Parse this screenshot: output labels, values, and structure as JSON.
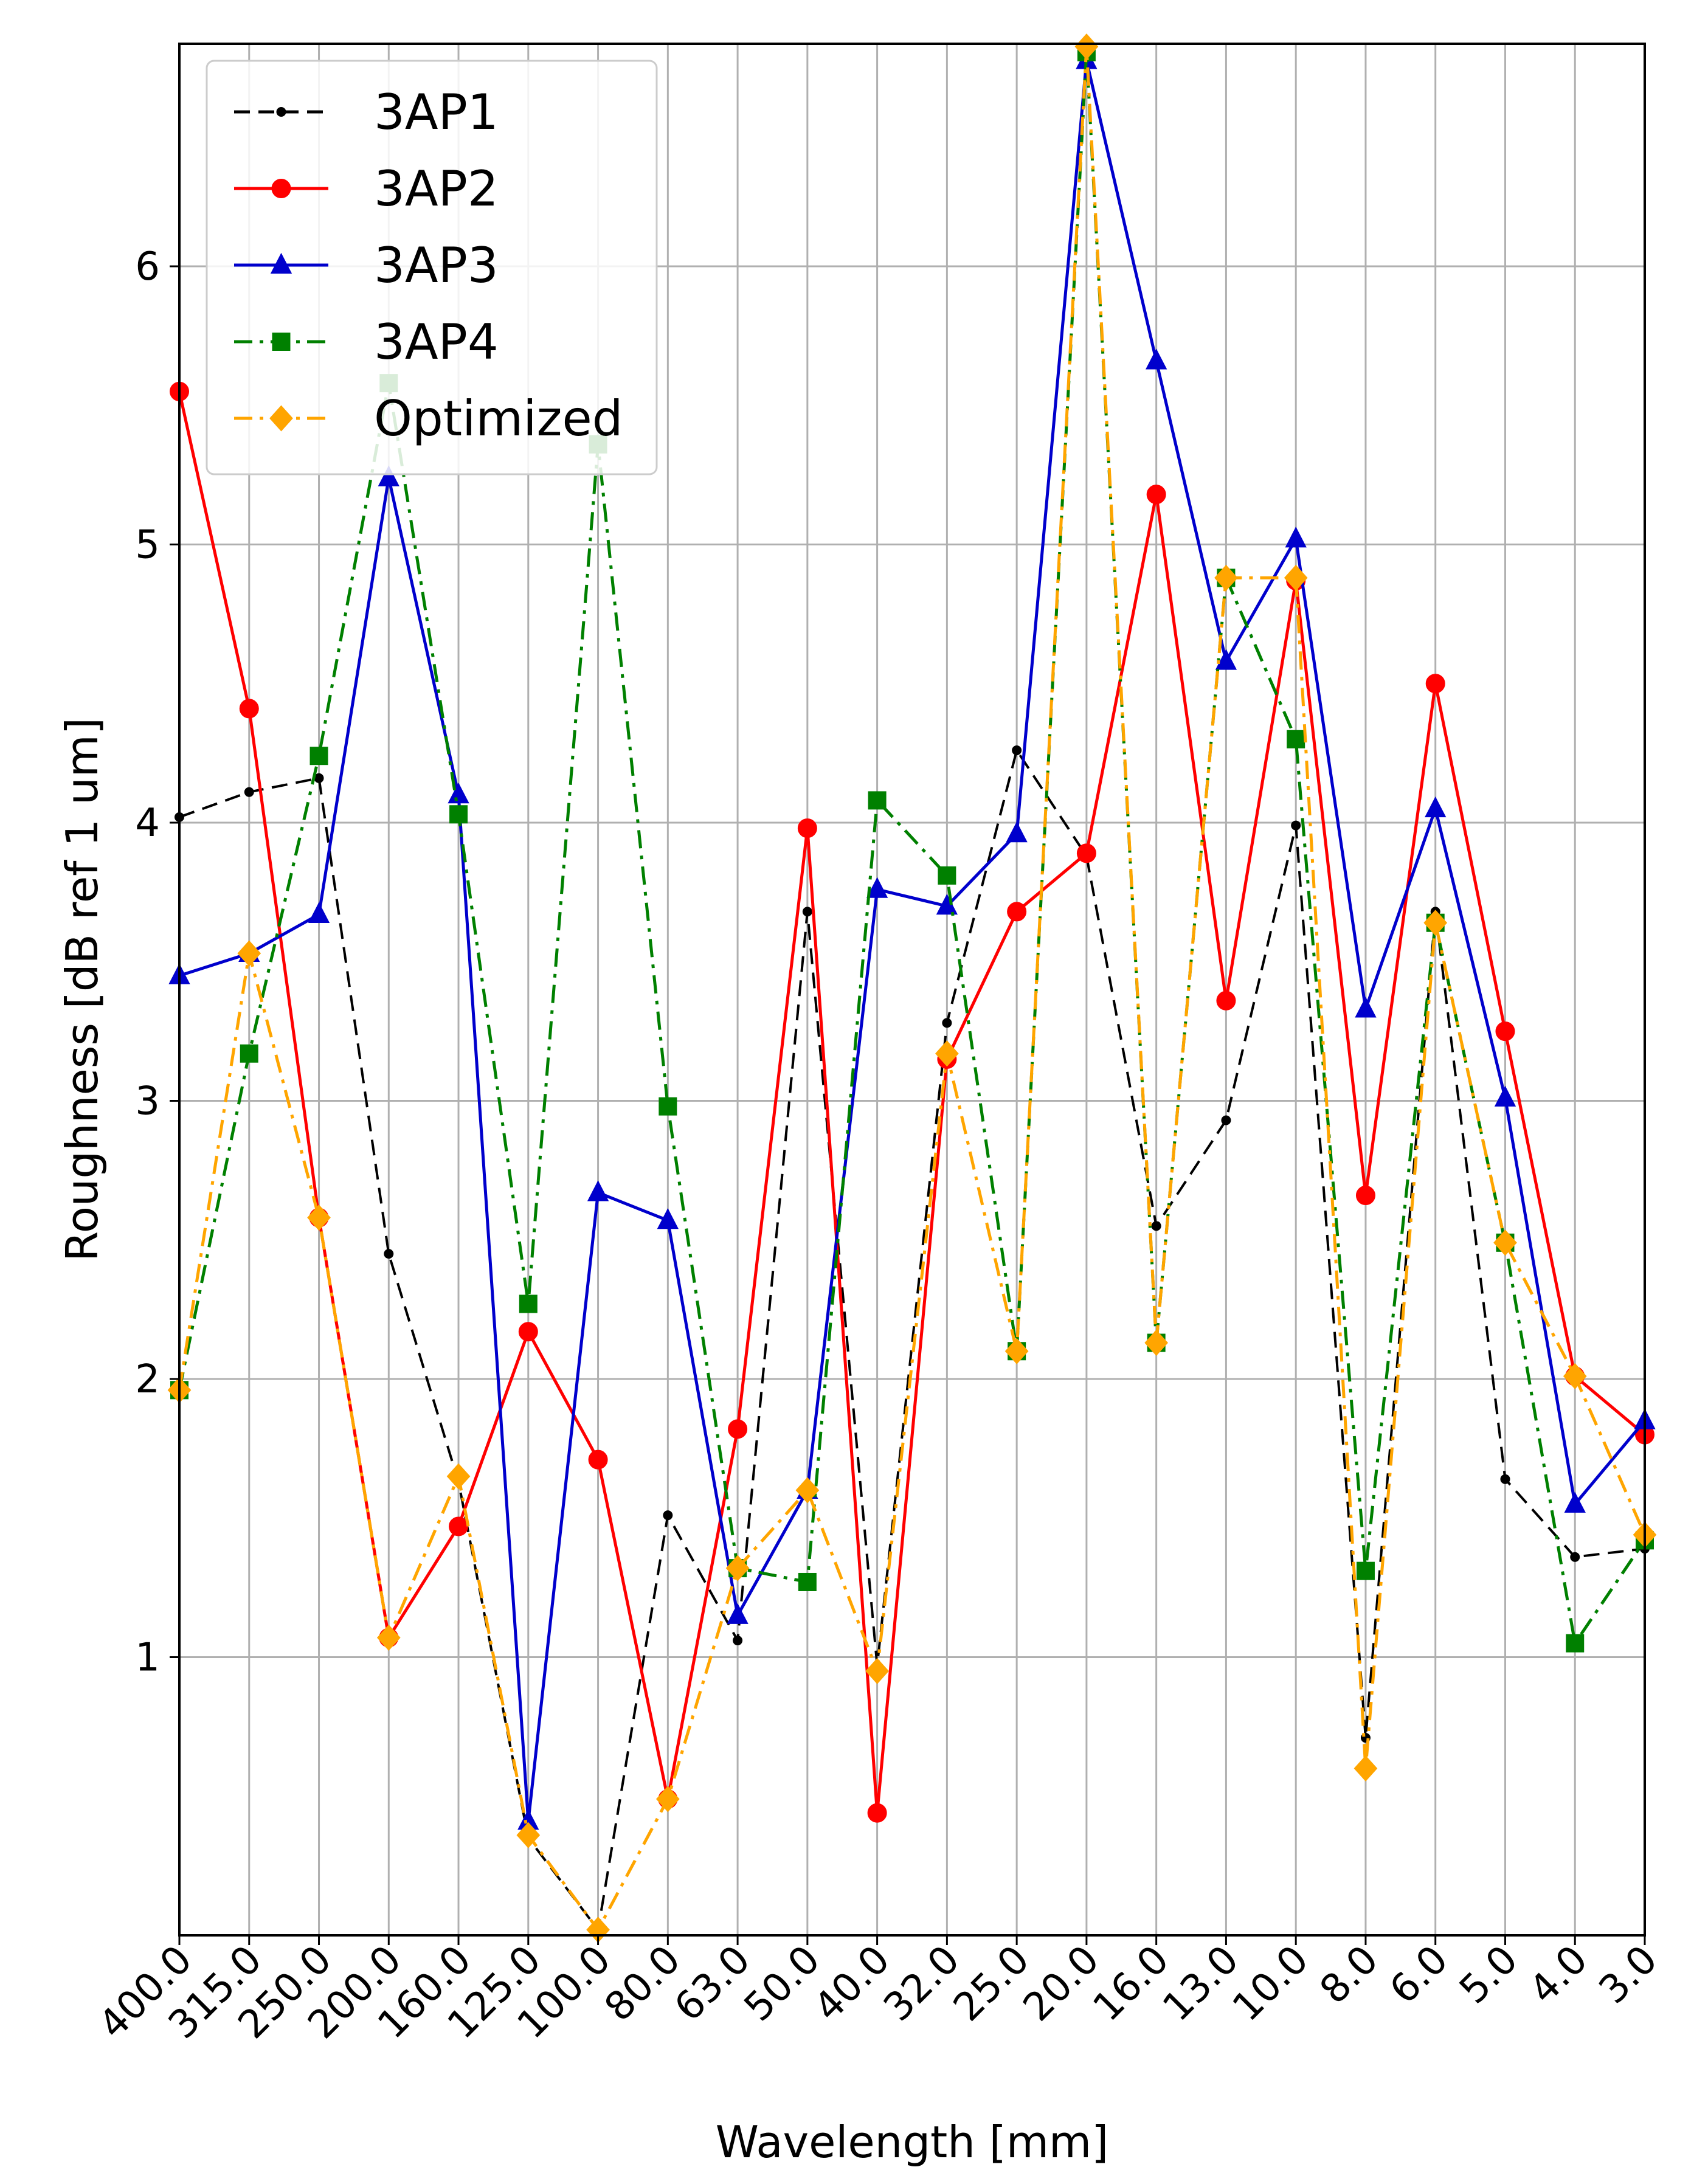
{
  "chart_data": {
    "type": "line",
    "title": "",
    "xlabel": "Wavelength [mm]",
    "ylabel": "Roughness [dB ref 1 um]",
    "ylim": [
      0,
      6.8
    ],
    "yticks": [
      "1",
      "2",
      "3",
      "4",
      "5",
      "6"
    ],
    "grid": true,
    "legend_position": "top-left",
    "categories": [
      "400.0",
      "315.0",
      "250.0",
      "200.0",
      "160.0",
      "125.0",
      "100.0",
      "80.0",
      "63.0",
      "50.0",
      "40.0",
      "32.0",
      "25.0",
      "20.0",
      "16.0",
      "13.0",
      "10.0",
      "8.0",
      "6.0",
      "5.0",
      "4.0",
      "3.0"
    ],
    "series": [
      {
        "name": "3AP1",
        "color": "#000000",
        "dash": "dashed",
        "marker": "dot",
        "values": [
          4.02,
          4.11,
          4.16,
          2.45,
          1.63,
          0.35,
          0.02,
          1.51,
          1.06,
          3.68,
          0.97,
          3.28,
          4.26,
          3.88,
          2.55,
          2.93,
          3.99,
          0.71,
          3.68,
          1.64,
          1.36,
          1.39
        ]
      },
      {
        "name": "3AP2",
        "color": "#ff0000",
        "dash": "solid",
        "marker": "circle",
        "values": [
          5.55,
          4.41,
          2.58,
          1.07,
          1.47,
          2.17,
          1.71,
          0.49,
          1.82,
          3.98,
          0.44,
          3.15,
          3.68,
          3.89,
          5.18,
          3.36,
          4.87,
          2.66,
          4.5,
          3.25,
          2.01,
          1.8
        ]
      },
      {
        "name": "3AP3",
        "color": "#0000cc",
        "dash": "solid",
        "marker": "triangle",
        "values": [
          3.45,
          3.53,
          3.67,
          5.24,
          4.1,
          0.41,
          2.67,
          2.57,
          1.15,
          1.6,
          3.76,
          3.7,
          3.96,
          6.74,
          5.66,
          4.58,
          5.02,
          3.33,
          4.05,
          3.01,
          1.55,
          1.85
        ]
      },
      {
        "name": "3AP4",
        "color": "#008000",
        "dash": "dashdot",
        "marker": "square",
        "values": [
          1.96,
          3.17,
          4.24,
          5.58,
          4.03,
          2.27,
          5.36,
          2.98,
          1.32,
          1.27,
          4.08,
          3.81,
          2.1,
          6.77,
          2.13,
          4.88,
          4.3,
          1.31,
          3.64,
          2.49,
          1.05,
          1.42
        ]
      },
      {
        "name": "Optimized",
        "color": "#ffa500",
        "dash": "dashdot",
        "marker": "diamond",
        "values": [
          1.96,
          3.53,
          2.58,
          1.07,
          1.65,
          0.36,
          0.02,
          0.49,
          1.32,
          1.6,
          0.95,
          3.17,
          2.1,
          6.79,
          2.13,
          4.88,
          4.88,
          0.6,
          3.64,
          2.49,
          2.01,
          1.44
        ]
      }
    ]
  }
}
